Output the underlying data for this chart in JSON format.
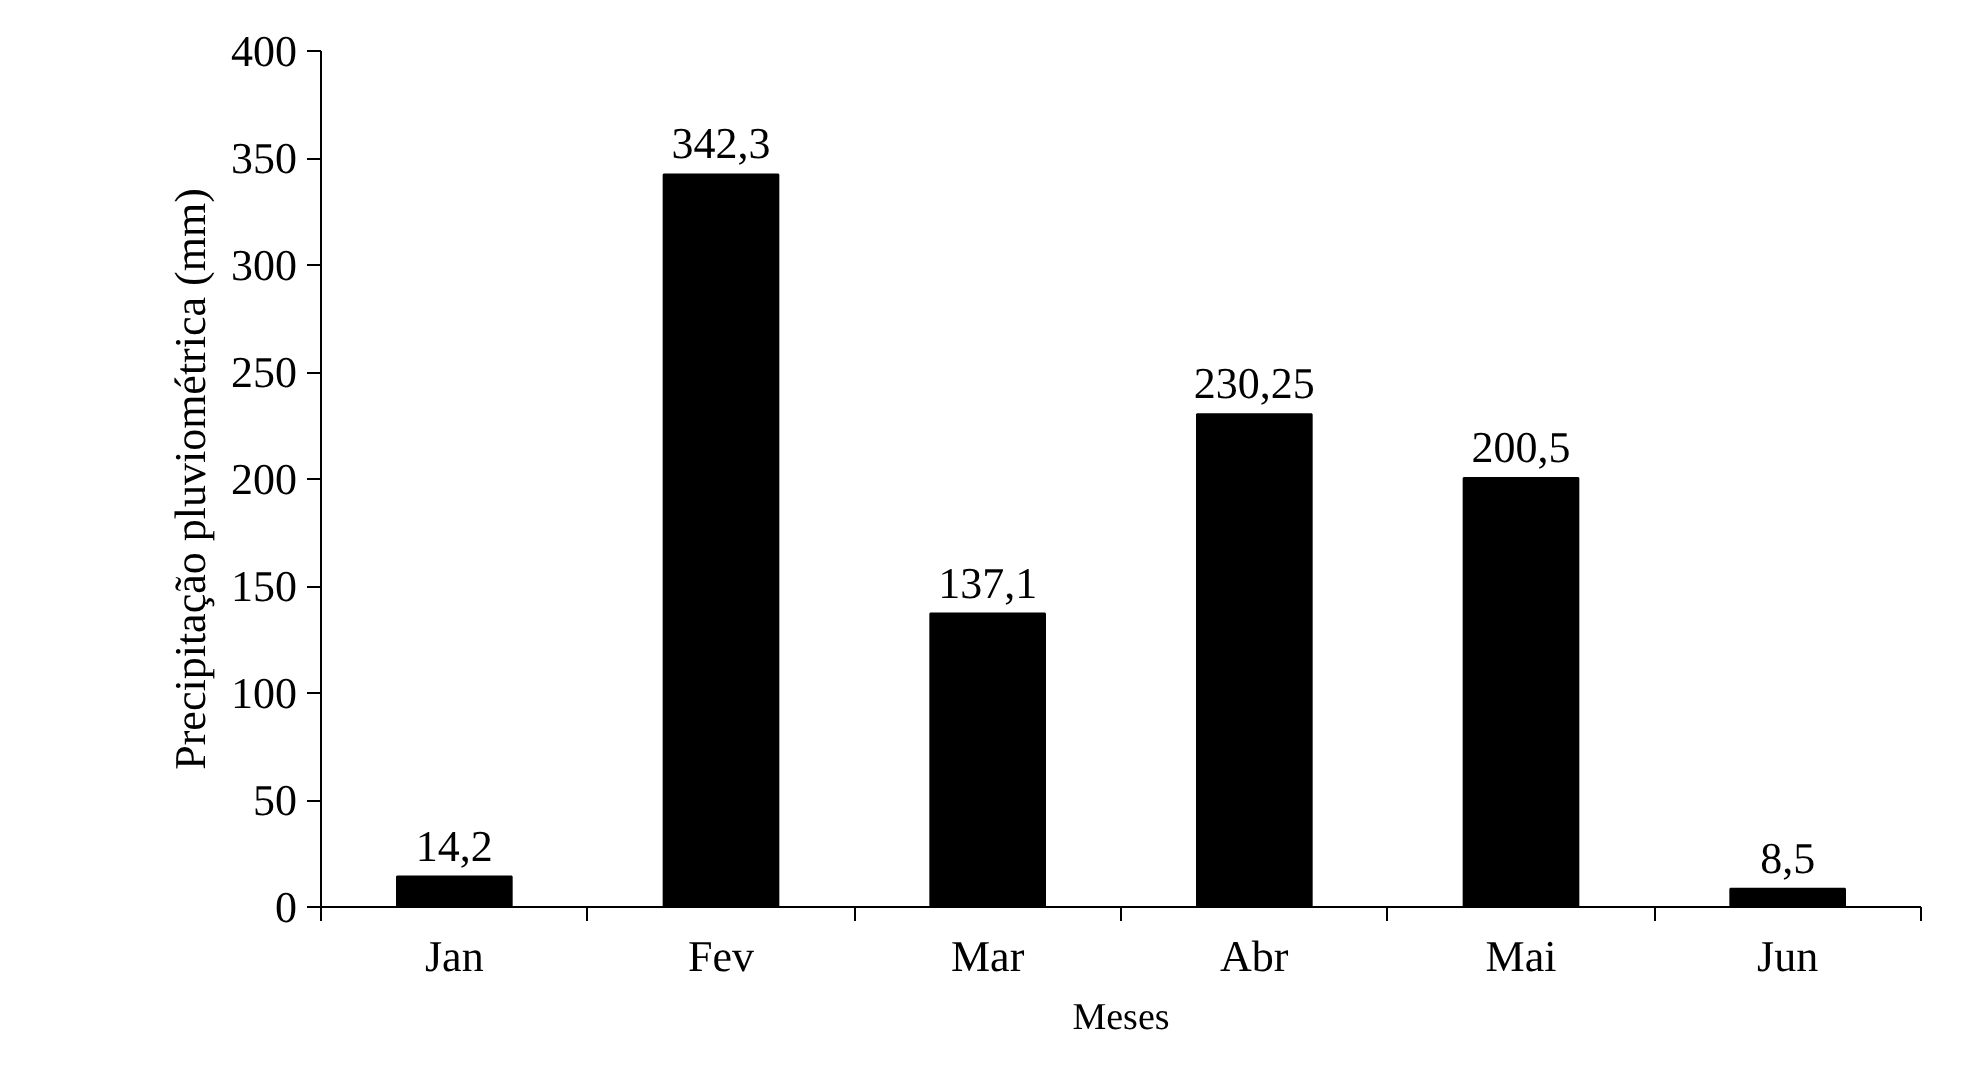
{
  "chart_data": {
    "type": "bar",
    "xlabel": "Meses",
    "ylabel": "Precipitação pluviométrica (mm)",
    "categories": [
      "Jan",
      "Fev",
      "Mar",
      "Abr",
      "Mai",
      "Jun"
    ],
    "values": [
      14.2,
      342.3,
      137.1,
      230.25,
      200.5,
      8.5
    ],
    "value_labels": [
      "14,2",
      "342,3",
      "137,1",
      "230,25",
      "200,5",
      "8,5"
    ],
    "color": "#000000",
    "ylim": [
      0,
      400
    ],
    "yticks": [
      0,
      50,
      100,
      150,
      200,
      250,
      300,
      350,
      400
    ],
    "grid": false
  }
}
